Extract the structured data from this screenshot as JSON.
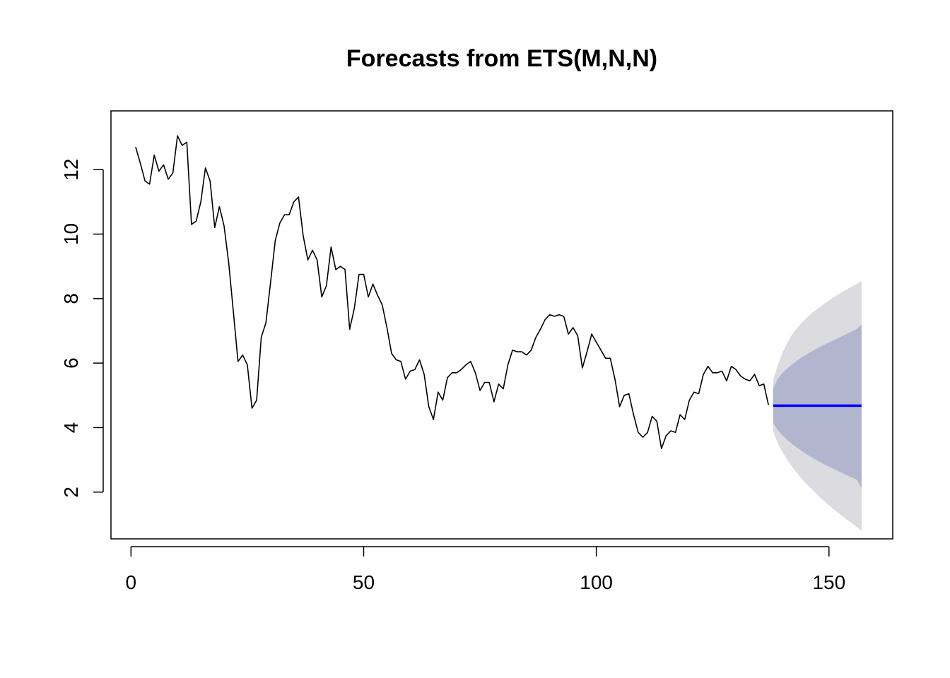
{
  "chart_data": {
    "type": "line",
    "title": "Forecasts from ETS(M,N,N)",
    "xlabel": "",
    "ylabel": "",
    "xlim": [
      -4.3,
      163.7
    ],
    "ylim": [
      0.55,
      13.82
    ],
    "xticks": [
      0,
      50,
      100,
      150
    ],
    "yticks": [
      2,
      4,
      6,
      8,
      10,
      12
    ],
    "grid": false,
    "legend": "none",
    "colors": {
      "observed": "#000000",
      "forecast": "#0000ff",
      "band_80": "#b1b5ce",
      "band_95": "#dbdbe0",
      "frame": "#000000"
    },
    "observed": {
      "x_start": 1,
      "values": [
        12.7,
        12.2,
        11.65,
        11.55,
        12.45,
        11.95,
        12.15,
        11.7,
        11.9,
        13.05,
        12.75,
        12.85,
        10.3,
        10.4,
        11,
        12.05,
        11.65,
        10.2,
        10.85,
        10.25,
        9.1,
        7.6,
        6.05,
        6.25,
        5.95,
        4.6,
        4.85,
        6.8,
        7.25,
        8.5,
        9.8,
        10.35,
        10.6,
        10.6,
        11,
        11.15,
        9.95,
        9.2,
        9.5,
        9.2,
        8.05,
        8.4,
        9.6,
        8.9,
        9,
        8.9,
        7.05,
        7.7,
        8.75,
        8.75,
        8.05,
        8.45,
        8.1,
        7.8,
        7.1,
        6.3,
        6.1,
        6.05,
        5.5,
        5.75,
        5.8,
        6.1,
        5.65,
        4.65,
        4.25,
        5.1,
        4.85,
        5.55,
        5.7,
        5.7,
        5.8,
        5.95,
        6.05,
        5.7,
        5.15,
        5.4,
        5.4,
        4.8,
        5.35,
        5.2,
        5.95,
        6.4,
        6.35,
        6.35,
        6.25,
        6.4,
        6.8,
        7.05,
        7.35,
        7.5,
        7.45,
        7.5,
        7.45,
        6.9,
        7.1,
        6.85,
        5.85,
        6.35,
        6.9,
        6.65,
        6.4,
        6.15,
        6.15,
        5.5,
        4.65,
        5,
        5.05,
        4.4,
        3.85,
        3.7,
        3.85,
        4.35,
        4.2,
        3.35,
        3.75,
        3.9,
        3.85,
        4.4,
        4.25,
        4.85,
        5.1,
        5.05,
        5.65,
        5.9,
        5.7,
        5.7,
        5.75,
        5.45,
        5.9,
        5.8,
        5.6,
        5.5,
        5.45,
        5.65,
        5.3,
        5.35,
        4.7
      ]
    },
    "forecast": {
      "x_start": 138,
      "x_end": 157,
      "point": 4.68,
      "lo80": [
        4.15,
        3.92,
        3.76,
        3.62,
        3.5,
        3.39,
        3.29,
        3.19,
        3.1,
        3.02,
        2.94,
        2.86,
        2.79,
        2.72,
        2.65,
        2.58,
        2.51,
        2.45,
        2.38,
        2.12
      ],
      "hi80": [
        5.22,
        5.51,
        5.69,
        5.83,
        5.95,
        6.06,
        6.16,
        6.25,
        6.34,
        6.42,
        6.5,
        6.57,
        6.64,
        6.71,
        6.78,
        6.85,
        6.92,
        6.99,
        7.06,
        7.2
      ],
      "lo95": [
        3.88,
        3.51,
        3.24,
        3.01,
        2.8,
        2.61,
        2.44,
        2.28,
        2.13,
        1.99,
        1.85,
        1.72,
        1.59,
        1.47,
        1.35,
        1.24,
        1.13,
        1.02,
        0.92,
        0.8
      ],
      "hi95": [
        5.48,
        5.94,
        6.32,
        6.63,
        6.87,
        7.06,
        7.23,
        7.38,
        7.51,
        7.63,
        7.74,
        7.84,
        7.94,
        8.04,
        8.13,
        8.22,
        8.3,
        8.38,
        8.46,
        8.55
      ]
    }
  }
}
